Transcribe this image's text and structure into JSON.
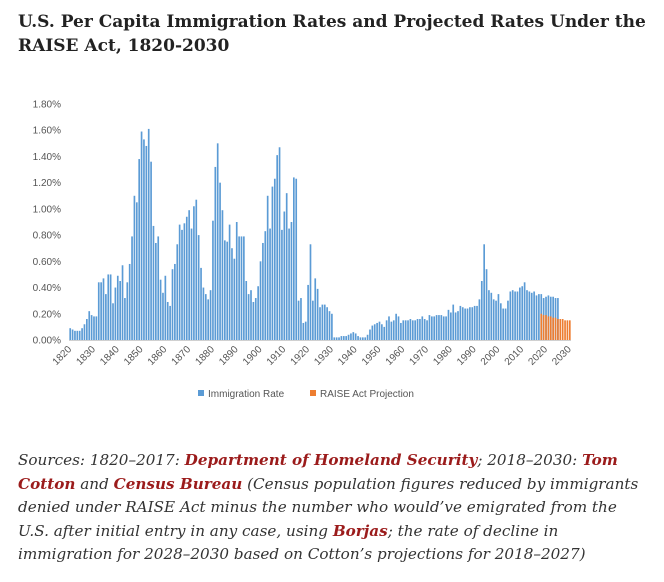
{
  "header": {
    "title": "U.S. Per Capita Immigration Rates and Projected Rates Under the RAISE Act, 1820-2030"
  },
  "colors": {
    "immigration": "#5b9bd5",
    "projection": "#ed7d31",
    "axis_text": "#555555",
    "link": "#9b1b1b"
  },
  "chart_data": {
    "type": "bar",
    "title": "",
    "xlabel": "",
    "ylabel": "",
    "ylim": [
      0,
      0.018
    ],
    "grid": false,
    "legend_position": "bottom",
    "y_ticks": [
      {
        "value": 0.018,
        "label": "1.80%"
      },
      {
        "value": 0.016,
        "label": "1.60%"
      },
      {
        "value": 0.014,
        "label": "1.40%"
      },
      {
        "value": 0.012,
        "label": "1.20%"
      },
      {
        "value": 0.01,
        "label": "1.00%"
      },
      {
        "value": 0.008,
        "label": "0.80%"
      },
      {
        "value": 0.006,
        "label": "0.60%"
      },
      {
        "value": 0.004,
        "label": "0.40%"
      },
      {
        "value": 0.002,
        "label": "0.20%"
      },
      {
        "value": 0.0,
        "label": "0.00%"
      }
    ],
    "x_ticks": [
      {
        "year": 1820,
        "label": "1820"
      },
      {
        "year": 1830,
        "label": "1830"
      },
      {
        "year": 1840,
        "label": "1840"
      },
      {
        "year": 1850,
        "label": "1850"
      },
      {
        "year": 1860,
        "label": "1860"
      },
      {
        "year": 1870,
        "label": "1870"
      },
      {
        "year": 1880,
        "label": "1880"
      },
      {
        "year": 1890,
        "label": "1890"
      },
      {
        "year": 1900,
        "label": "1900"
      },
      {
        "year": 1910,
        "label": "1910"
      },
      {
        "year": 1920,
        "label": "1920"
      },
      {
        "year": 1930,
        "label": "1930"
      },
      {
        "year": 1940,
        "label": "1940"
      },
      {
        "year": 1950,
        "label": "1950"
      },
      {
        "year": 1960,
        "label": "1960"
      },
      {
        "year": 1970,
        "label": "1970"
      },
      {
        "year": 1980,
        "label": "1980"
      },
      {
        "year": 1990,
        "label": "1990"
      },
      {
        "year": 2000,
        "label": "2000"
      },
      {
        "year": 2010,
        "label": "2010"
      },
      {
        "year": 2020,
        "label": "2020"
      },
      {
        "year": 2030,
        "label": "2030"
      }
    ],
    "x_range": [
      1820,
      2030
    ],
    "series": [
      {
        "name": "Immigration Rate",
        "start_year": 1820,
        "values": [
          0.0009,
          0.0008,
          0.0007,
          0.0007,
          0.0007,
          0.0009,
          0.0012,
          0.0016,
          0.0022,
          0.0019,
          0.0018,
          0.0018,
          0.0044,
          0.0044,
          0.0047,
          0.0035,
          0.005,
          0.005,
          0.0028,
          0.004,
          0.0049,
          0.0045,
          0.0057,
          0.0032,
          0.0044,
          0.0058,
          0.0079,
          0.011,
          0.0105,
          0.0138,
          0.0159,
          0.0153,
          0.0148,
          0.0161,
          0.0136,
          0.0087,
          0.0074,
          0.0079,
          0.0046,
          0.0036,
          0.0049,
          0.0029,
          0.0026,
          0.0054,
          0.0058,
          0.0073,
          0.0088,
          0.0084,
          0.0089,
          0.0094,
          0.0099,
          0.0085,
          0.0102,
          0.0107,
          0.008,
          0.0055,
          0.004,
          0.0035,
          0.0031,
          0.0038,
          0.0091,
          0.0132,
          0.015,
          0.012,
          0.0099,
          0.0076,
          0.0075,
          0.0088,
          0.007,
          0.0062,
          0.009,
          0.0079,
          0.0079,
          0.0079,
          0.0045,
          0.0035,
          0.0038,
          0.0029,
          0.0032,
          0.0041,
          0.006,
          0.0074,
          0.0083,
          0.011,
          0.0085,
          0.0117,
          0.0123,
          0.0141,
          0.0147,
          0.0084,
          0.0098,
          0.0112,
          0.0085,
          0.009,
          0.0124,
          0.0123,
          0.003,
          0.0032,
          0.0013,
          0.0014,
          0.0042,
          0.0073,
          0.003,
          0.0047,
          0.0039,
          0.0025,
          0.0027,
          0.0027,
          0.0025,
          0.0022,
          0.002,
          0.0002,
          0.0002,
          0.0002,
          0.0003,
          0.0003,
          0.0003,
          0.0004,
          0.0005,
          0.0006,
          0.0005,
          0.0003,
          0.0002,
          0.0002,
          0.0002,
          0.0004,
          0.0008,
          0.0011,
          0.0012,
          0.0013,
          0.0014,
          0.0012,
          0.001,
          0.0015,
          0.0018,
          0.0014,
          0.0015,
          0.002,
          0.0018,
          0.0013,
          0.0015,
          0.0015,
          0.0015,
          0.0016,
          0.0015,
          0.0015,
          0.0016,
          0.0016,
          0.0018,
          0.0016,
          0.0015,
          0.0019,
          0.0018,
          0.0018,
          0.0019,
          0.0019,
          0.0019,
          0.0018,
          0.0018,
          0.0023,
          0.0021,
          0.0027,
          0.0021,
          0.0022,
          0.0026,
          0.0025,
          0.0024,
          0.0024,
          0.0025,
          0.0025,
          0.0026,
          0.0026,
          0.0031,
          0.0045,
          0.0073,
          0.0054,
          0.0038,
          0.0036,
          0.0031,
          0.003,
          0.0035,
          0.0028,
          0.0024,
          0.0024,
          0.003,
          0.0037,
          0.0038,
          0.0037,
          0.0037,
          0.004,
          0.0041,
          0.0044,
          0.0038,
          0.0037,
          0.0036,
          0.0037,
          0.0034,
          0.0035,
          0.0035,
          0.0032,
          0.0033,
          0.0034,
          0.0033,
          0.0033,
          0.0032,
          0.0032
        ]
      },
      {
        "name": "RAISE Act Projection",
        "start_year": 2018,
        "values": [
          0.002,
          0.0019,
          0.0019,
          0.0018,
          0.0018,
          0.0017,
          0.0017,
          0.0016,
          0.0016,
          0.0016,
          0.0015,
          0.0015,
          0.0015
        ]
      }
    ]
  },
  "legend": {
    "items": [
      {
        "label": "Immigration Rate"
      },
      {
        "label": "RAISE Act Projection"
      }
    ]
  },
  "sources": {
    "prefix": "Sources: 1820–2017: ",
    "link1": "Department of Homeland Security",
    "mid1": "; 2018–2030: ",
    "link2": "Tom Cotton",
    "mid2": " and ",
    "link3": "Census Bureau",
    "mid3": " (Census population figures reduced by immigrants denied under RAISE Act minus the number who would’ve emigrated from the U.S. after initial entry in any case, using ",
    "link4": "Borjas",
    "suffix": "; the rate of decline in immigration for 2028–2030 based on Cotton’s projections for 2018–2027)"
  }
}
